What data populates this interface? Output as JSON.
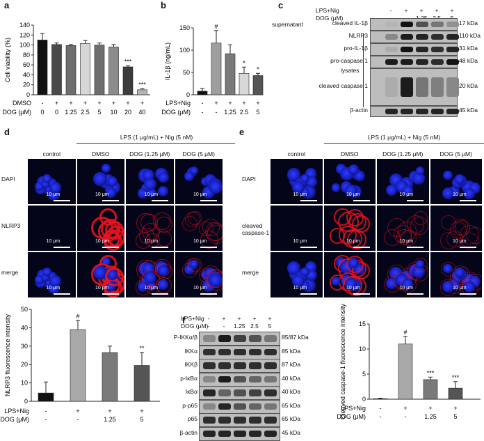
{
  "panel_letters": {
    "a": "a",
    "b": "b",
    "c": "c",
    "d": "d",
    "e": "e",
    "f": "f"
  },
  "panel_a": {
    "ylabel": "Cell viability (%)",
    "yticks": [
      "0",
      "20",
      "40",
      "60",
      "80",
      "100",
      "120",
      "140"
    ],
    "row1_label": "DMSO",
    "row2_label": "DOG (μM)",
    "row1": [
      "-",
      "+",
      "+",
      "+",
      "+",
      "+",
      "+",
      "+"
    ],
    "row2": [
      "0",
      "0",
      "1.25",
      "2.5",
      "5",
      "10",
      "20",
      "40"
    ],
    "sig": [
      "",
      "",
      "",
      "",
      "",
      "",
      "***",
      "***"
    ]
  },
  "panel_b": {
    "ylabel": "IL-1β (ng/mL)",
    "yticks": [
      "0",
      "50",
      "100",
      "150"
    ],
    "row1_label": "LPS+Nig",
    "row2_label": "DOG (μM)",
    "row1": [
      "-",
      "+",
      "+",
      "+",
      "+"
    ],
    "row2": [
      "-",
      "-",
      "1.25",
      "2.5",
      "5"
    ],
    "sig": [
      "",
      "#",
      "",
      "*",
      "*"
    ]
  },
  "panel_c": {
    "row1_label": "LPS+Nig",
    "row2_label": "DOG (μM)",
    "row1": [
      "-",
      "+",
      "+",
      "+",
      "+"
    ],
    "row2": [
      "-",
      "-",
      "1.25",
      "2.5",
      "5"
    ],
    "supernatant": "supernatant",
    "lysates": "lysates",
    "bands": [
      {
        "name": "cleaved IL-1β",
        "kda": "17 kDa"
      },
      {
        "name": "NLRP3",
        "kda": "110 kDa"
      },
      {
        "name": "pro-IL-1β",
        "kda": "31 kDa"
      },
      {
        "name": "pro-caspase 1",
        "kda": "48 kDa"
      },
      {
        "name": "cleaved caspase 1",
        "kda": "20 kDa"
      },
      {
        "name": "β-actin",
        "kda": "45 kDa"
      }
    ]
  },
  "panel_d": {
    "header": "LPS (1 μg/mL) + Nig (5 nM)",
    "columns": [
      "control",
      "DMSO",
      "DOG (1.25 μM)",
      "DOG (5 μM)"
    ],
    "rows": [
      "DAPI",
      "NLRP3",
      "merge"
    ],
    "scale": "10 μm"
  },
  "panel_e": {
    "header": "LPS (1 μg/mL) + Nig (5 nM)",
    "columns": [
      "control",
      "DMSO",
      "DOG (1.25 μM)",
      "DOG (5 μM)"
    ],
    "rows": [
      "DAPI",
      "cleaved caspase-1",
      "merge"
    ],
    "scale": "10 μm"
  },
  "panel_f": {
    "row1_label": "LPS+Nig",
    "row2_label": "DOG (μM)",
    "row1": [
      "-",
      "+",
      "+",
      "+",
      "+"
    ],
    "row2": [
      "-",
      "-",
      "1.25",
      "2.5",
      "5"
    ],
    "bands": [
      {
        "name": "P-IKKα/β",
        "kda": "85/87 kDa"
      },
      {
        "name": "IKKα",
        "kda": "85 kDa"
      },
      {
        "name": "IKKβ",
        "kda": "87 kDa"
      },
      {
        "name": "p-IκBα",
        "kda": "40 kDa"
      },
      {
        "name": "IκBα",
        "kda": "40 kDa"
      },
      {
        "name": "p-p65",
        "kda": "65 kDa"
      },
      {
        "name": "p65",
        "kda": "65 kDa"
      },
      {
        "name": "β-actin",
        "kda": "45 kDa"
      }
    ]
  },
  "panel_d_chart": {
    "ylabel": "NLRP3 fluorescence intensity",
    "yticks": [
      "0",
      "10",
      "20",
      "30",
      "40",
      "50"
    ],
    "row1_label": "LPS+Nig",
    "row2_label": "DOG (μM)",
    "row1": [
      "-",
      "+",
      "+",
      "+"
    ],
    "row2": [
      "-",
      "-",
      "1.25",
      "5"
    ],
    "sig": [
      "",
      "#",
      "",
      "**"
    ]
  },
  "panel_e_chart": {
    "ylabel": "Cleaved caspase-1 fluorescence intensity",
    "yticks": [
      "0",
      "5",
      "10",
      "15"
    ],
    "row1_label": "LPS+Nig",
    "row2_label": "DOG (μM)",
    "row1": [
      "-",
      "+",
      "+",
      "+"
    ],
    "row2": [
      "-",
      "-",
      "1.25",
      "5"
    ],
    "sig": [
      "",
      "#",
      "***",
      "***"
    ]
  },
  "chart_data": [
    {
      "type": "bar",
      "panel": "a",
      "categories": [
        "0",
        "0",
        "1.25",
        "2.5",
        "5",
        "10",
        "20",
        "40"
      ],
      "values": [
        110,
        101,
        99,
        103,
        100,
        96,
        56,
        10
      ],
      "errors": [
        13,
        3,
        2,
        6,
        4,
        5,
        2,
        2
      ],
      "colors": [
        "#111111",
        "#4a4a4a",
        "#6e6e6e",
        "#d6d6d6",
        "#6e6e6e",
        "#8c8c8c",
        "#3c3c3c",
        "#b5b5b5"
      ],
      "ylabel": "Cell viability (%)",
      "ylim": [
        0,
        140
      ]
    },
    {
      "type": "bar",
      "panel": "b",
      "categories": [
        "-",
        "-",
        "1.25",
        "2.5",
        "5"
      ],
      "values": [
        8,
        116,
        92,
        48,
        43
      ],
      "errors": [
        6,
        28,
        20,
        14,
        5
      ],
      "colors": [
        "#111111",
        "#9e9e9e",
        "#7a7a7a",
        "#d8d8d8",
        "#555555"
      ],
      "ylabel": "IL-1β (ng/mL)",
      "ylim": [
        0,
        150
      ]
    },
    {
      "type": "bar",
      "panel": "d",
      "categories": [
        "-",
        "-",
        "1.25",
        "5"
      ],
      "values": [
        4.5,
        39,
        26.5,
        19.5
      ],
      "errors": [
        6,
        5,
        3.5,
        7
      ],
      "colors": [
        "#111111",
        "#a8a8a8",
        "#7a7a7a",
        "#555555"
      ],
      "ylabel": "NLRP3 fluorescence intensity",
      "ylim": [
        0,
        50
      ]
    },
    {
      "type": "bar",
      "panel": "e",
      "categories": [
        "-",
        "-",
        "1.25",
        "5"
      ],
      "values": [
        0.1,
        11,
        3.9,
        2.2
      ],
      "errors": [
        0.1,
        1.5,
        0.5,
        1.3
      ],
      "colors": [
        "#111111",
        "#a8a8a8",
        "#7a7a7a",
        "#555555"
      ],
      "ylabel": "Cleaved caspase-1 fluorescence intensity",
      "ylim": [
        0,
        15
      ]
    }
  ]
}
